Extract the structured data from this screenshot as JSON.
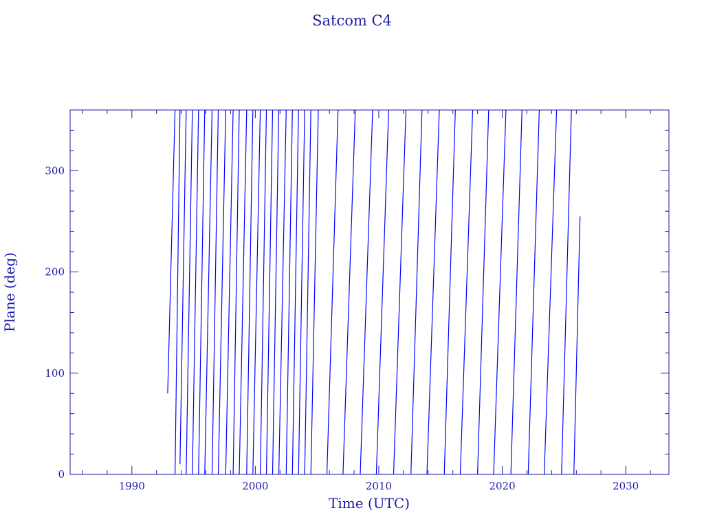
{
  "chart_data": {
    "type": "line",
    "title": "Satcom C4",
    "xlabel": "Time (UTC)",
    "ylabel": "Plane (deg)",
    "xlim": [
      1985.0,
      2033.5
    ],
    "ylim": [
      0,
      360
    ],
    "xticks": [
      1990,
      2000,
      2010,
      2020,
      2030
    ],
    "xtick_labels": [
      "1990",
      "2000",
      "2010",
      "2020",
      "2030"
    ],
    "yticks": [
      0,
      100,
      200,
      300
    ],
    "ytick_labels": [
      "0",
      "100",
      "200",
      "300"
    ],
    "grid": false,
    "series": [
      {
        "color": "#0000ff",
        "segments": [
          {
            "x": [
              1992.9,
              1993.5
            ],
            "y": [
              80,
              360
            ]
          },
          {
            "x": [
              1993.5,
              1993.9
            ],
            "y": [
              0,
              360
            ]
          },
          {
            "x": [
              1993.9,
              1994.4
            ],
            "y": [
              10,
              360
            ]
          },
          {
            "x": [
              1994.4,
              1994.9
            ],
            "y": [
              0,
              360
            ]
          },
          {
            "x": [
              1994.9,
              1995.4
            ],
            "y": [
              0,
              360
            ]
          },
          {
            "x": [
              1995.4,
              1995.9
            ],
            "y": [
              0,
              360
            ]
          },
          {
            "x": [
              1995.9,
              1996.5
            ],
            "y": [
              0,
              360
            ]
          },
          {
            "x": [
              1996.5,
              1997.0
            ],
            "y": [
              0,
              360
            ]
          },
          {
            "x": [
              1997.0,
              1997.6
            ],
            "y": [
              0,
              360
            ]
          },
          {
            "x": [
              1997.6,
              1998.2
            ],
            "y": [
              0,
              360
            ]
          },
          {
            "x": [
              1998.2,
              1998.7
            ],
            "y": [
              0,
              360
            ]
          },
          {
            "x": [
              1998.7,
              1999.3
            ],
            "y": [
              0,
              360
            ]
          },
          {
            "x": [
              1999.3,
              1999.8
            ],
            "y": [
              0,
              360
            ]
          },
          {
            "x": [
              1999.8,
              2000.4
            ],
            "y": [
              0,
              360
            ]
          },
          {
            "x": [
              2000.4,
              2000.9
            ],
            "y": [
              0,
              360
            ]
          },
          {
            "x": [
              2000.9,
              2001.4
            ],
            "y": [
              0,
              360
            ]
          },
          {
            "x": [
              2001.4,
              2001.9
            ],
            "y": [
              0,
              360
            ]
          },
          {
            "x": [
              2001.9,
              2002.5
            ],
            "y": [
              0,
              360
            ]
          },
          {
            "x": [
              2002.5,
              2003.0
            ],
            "y": [
              0,
              360
            ]
          },
          {
            "x": [
              2003.0,
              2003.5
            ],
            "y": [
              0,
              360
            ]
          },
          {
            "x": [
              2003.5,
              2004.0
            ],
            "y": [
              0,
              360
            ]
          },
          {
            "x": [
              2004.0,
              2004.5
            ],
            "y": [
              0,
              360
            ]
          },
          {
            "x": [
              2004.5,
              2005.1
            ],
            "y": [
              0,
              360
            ]
          },
          {
            "x": [
              2005.8,
              2006.7
            ],
            "y": [
              0,
              360
            ]
          },
          {
            "x": [
              2007.1,
              2008.1
            ],
            "y": [
              0,
              360
            ]
          },
          {
            "x": [
              2008.5,
              2009.5
            ],
            "y": [
              0,
              360
            ]
          },
          {
            "x": [
              2009.8,
              2010.8
            ],
            "y": [
              0,
              360
            ]
          },
          {
            "x": [
              2011.2,
              2012.2
            ],
            "y": [
              0,
              360
            ]
          },
          {
            "x": [
              2012.6,
              2013.5
            ],
            "y": [
              0,
              360
            ]
          },
          {
            "x": [
              2013.9,
              2014.9
            ],
            "y": [
              0,
              360
            ]
          },
          {
            "x": [
              2015.3,
              2016.2
            ],
            "y": [
              0,
              360
            ]
          },
          {
            "x": [
              2016.6,
              2017.6
            ],
            "y": [
              0,
              360
            ]
          },
          {
            "x": [
              2018.0,
              2018.9
            ],
            "y": [
              0,
              360
            ]
          },
          {
            "x": [
              2019.3,
              2020.3
            ],
            "y": [
              0,
              360
            ]
          },
          {
            "x": [
              2020.7,
              2021.6
            ],
            "y": [
              0,
              360
            ]
          },
          {
            "x": [
              2022.1,
              2023.0
            ],
            "y": [
              0,
              360
            ]
          },
          {
            "x": [
              2023.4,
              2024.4
            ],
            "y": [
              0,
              360
            ]
          },
          {
            "x": [
              2024.8,
              2025.6
            ],
            "y": [
              0,
              360
            ]
          },
          {
            "x": [
              2025.8,
              2026.3
            ],
            "y": [
              0,
              255
            ]
          }
        ]
      }
    ]
  }
}
